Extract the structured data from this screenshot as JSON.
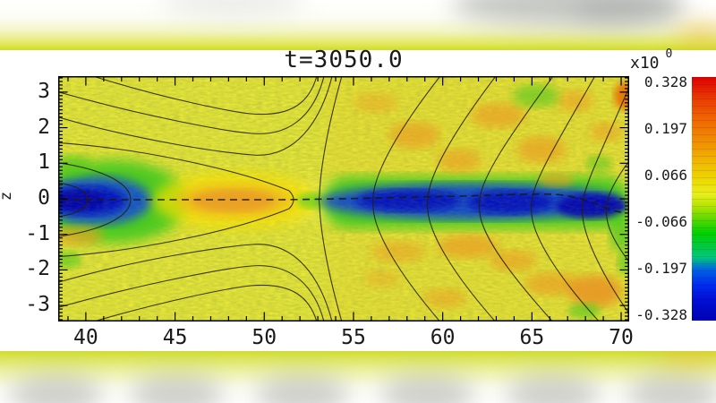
{
  "chart_data": {
    "type": "heatmap",
    "title": "t=3050.0",
    "xlabel": "",
    "ylabel": "z",
    "x_ticks": [
      40,
      45,
      50,
      55,
      60,
      65,
      70
    ],
    "x_tick_labels": [
      "40",
      "45",
      "50",
      "55",
      "60",
      "65",
      "70"
    ],
    "y_ticks": [
      3,
      2,
      1,
      0,
      -1,
      -2,
      -3
    ],
    "y_tick_labels": [
      "3",
      "2",
      "1",
      "0",
      "-1",
      "-2",
      "-3"
    ],
    "xlim": [
      38.45,
      70.45
    ],
    "ylim": [
      -3.45,
      3.45
    ],
    "grid": false,
    "legend": "colorbar on right",
    "colorbar": {
      "exponent_prefix": "x10",
      "exponent": "0",
      "tick_labels": [
        "0.328",
        "0.197",
        "0.066",
        "-0.066",
        "-0.197",
        "-0.328"
      ],
      "tick_values": [
        0.328,
        0.197,
        0.066,
        -0.066,
        -0.197,
        -0.328
      ],
      "range": [
        -0.328,
        0.328
      ],
      "palette_top_to_bottom": [
        "#dc0000",
        "#f06400",
        "#f0b400",
        "#e8ee1e",
        "#50d700",
        "#00c846",
        "#0064e1",
        "#002df0",
        "#0000b4"
      ]
    },
    "field_description": "signed field component on the x-z plane; yellow background near +0.02, blue negative lobes, orange positive patches; thin black magnetic flux contours with an X-point; dashed neutral line at z=0",
    "regions": [
      {
        "label": "left negative lobe",
        "x_range": [
          38.4,
          43.5
        ],
        "z_range": [
          -0.6,
          0.6
        ],
        "peak_value": -0.33,
        "color": "dark blue with green halo"
      },
      {
        "label": "central positive island patch",
        "x_range": [
          45.5,
          51.5
        ],
        "z_range": [
          -0.5,
          0.5
        ],
        "peak_value": 0.18,
        "color": "orange"
      },
      {
        "label": "right current-sheet channel",
        "x_range": [
          53.5,
          70.4
        ],
        "z_range": [
          -0.6,
          0.6
        ],
        "peak_value": -0.33,
        "color": "dark blue with green edges"
      },
      {
        "label": "turbulent upper-right patches",
        "x_range": [
          55,
          70.4
        ],
        "z_range": [
          0.6,
          3.4
        ],
        "peak_value": 0.2,
        "color": "orange/green mottle"
      },
      {
        "label": "turbulent lower-right patches",
        "x_range": [
          55,
          70.4
        ],
        "z_range": [
          -3.4,
          -0.6
        ],
        "peak_value": 0.2,
        "color": "orange/green mottle"
      },
      {
        "label": "background",
        "x_range": [
          38.45,
          70.45
        ],
        "z_range": [
          -3.45,
          3.45
        ],
        "peak_value": 0.02,
        "color": "speckled yellow"
      }
    ],
    "contours": {
      "style": "thin black flux contours",
      "x_point": {
        "x": 52.0,
        "z": 0
      },
      "left_island_center": {
        "x": 38.6,
        "z": 0
      },
      "dashed_neutral_line": "z = 0"
    }
  },
  "letterbox": {
    "style": "blurred pale yellow-green / white / gray gradient bands",
    "accent_colors": [
      "#cfdc2e",
      "#ffffff",
      "#9a9e98"
    ]
  }
}
